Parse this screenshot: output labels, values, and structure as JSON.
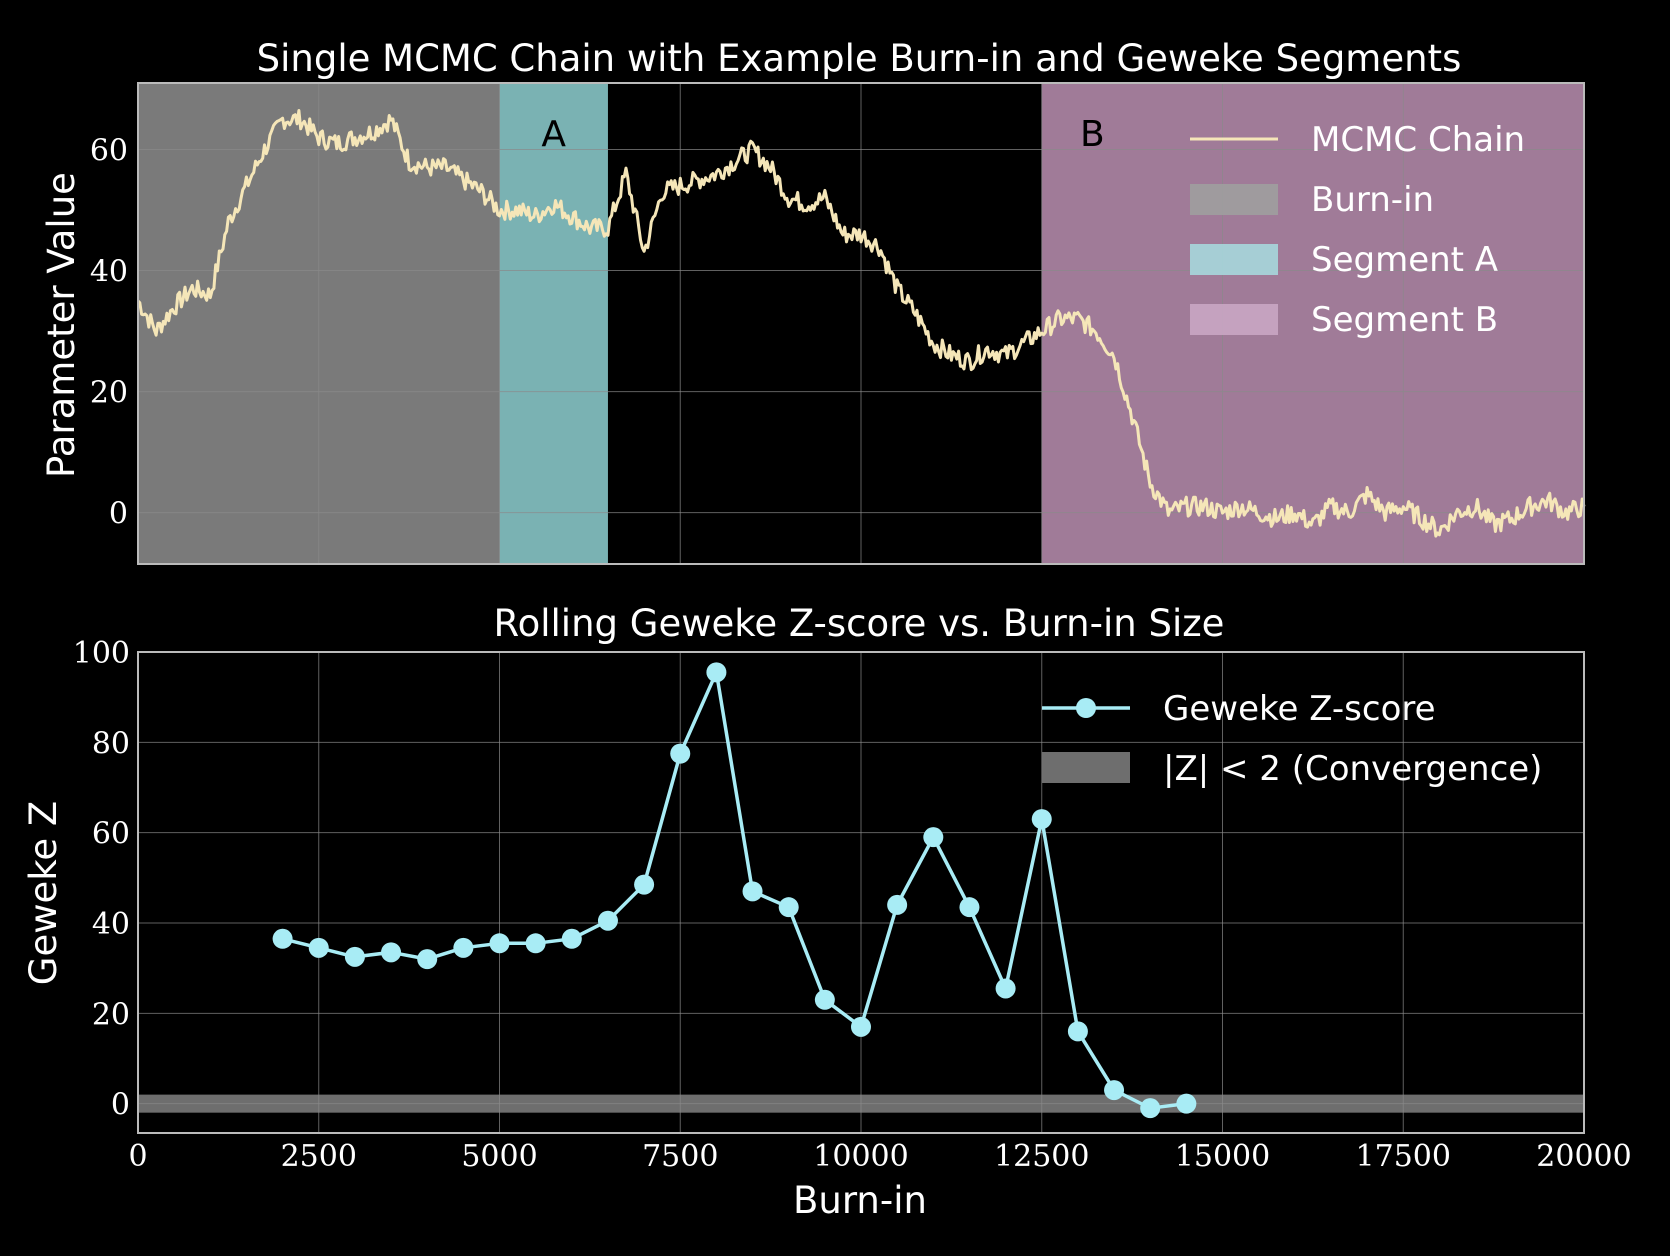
{
  "chart_data": [
    {
      "type": "line",
      "title": "Single MCMC Chain with Example Burn-in and Geweke Segments",
      "xlabel": "",
      "ylabel": "Parameter Value",
      "xlim": [
        0,
        20000
      ],
      "ylim": [
        -8.5,
        71
      ],
      "yticks": [
        "0",
        "20",
        "40",
        "60"
      ],
      "grid": true,
      "legend_position": "top-right",
      "regions": [
        {
          "name": "Burn-in",
          "x0": 0,
          "x1": 5000,
          "color": "#7a7a7a",
          "label": ""
        },
        {
          "name": "Segment A",
          "x0": 5000,
          "x1": 6500,
          "color": "#7ab2b3",
          "label": "A"
        },
        {
          "name": "Segment B",
          "x0": 12500,
          "x1": 20000,
          "color": "#a07b98",
          "label": "B"
        }
      ],
      "series": [
        {
          "name": "MCMC Chain",
          "color": "#f5e6b8",
          "x": [
            0,
            250,
            500,
            750,
            1000,
            1250,
            1500,
            1750,
            2000,
            2250,
            2500,
            2750,
            3000,
            3250,
            3500,
            3750,
            4000,
            4250,
            4500,
            4750,
            5000,
            5250,
            5500,
            5750,
            6000,
            6250,
            6500,
            6750,
            7000,
            7250,
            7500,
            7750,
            8000,
            8250,
            8500,
            8750,
            9000,
            9250,
            9500,
            9750,
            10000,
            10250,
            10500,
            10750,
            11000,
            11250,
            11500,
            11750,
            12000,
            12250,
            12500,
            12750,
            13000,
            13250,
            13500,
            13750,
            14000,
            14250,
            14500,
            14750,
            15000,
            15250,
            15500,
            15750,
            16000,
            16250,
            16500,
            16750,
            17000,
            17250,
            17500,
            17750,
            18000,
            18250,
            18500,
            18750,
            19000,
            19250,
            19500,
            19750,
            20000
          ],
          "y": [
            35,
            30,
            34,
            37,
            36,
            48,
            54,
            60,
            65,
            65,
            62,
            61,
            62,
            63,
            65,
            58,
            57,
            57,
            55,
            53,
            50,
            50,
            49,
            51,
            49,
            47,
            47,
            56,
            43,
            53,
            54,
            55,
            56,
            58,
            60,
            57,
            52,
            51,
            52,
            46,
            46,
            44,
            37,
            33,
            28,
            26,
            25,
            27,
            26,
            28,
            30,
            32,
            32,
            30,
            26,
            16,
            5,
            0,
            1,
            1,
            0,
            1,
            0,
            -1,
            0,
            -2,
            1,
            0,
            3,
            0,
            1,
            -1,
            -3,
            0,
            1,
            -2,
            -1,
            1,
            2,
            0,
            1
          ]
        }
      ]
    },
    {
      "type": "line",
      "title": "Rolling Geweke Z-score vs. Burn-in Size",
      "xlabel": "Burn-in",
      "ylabel": "Geweke Z",
      "xlim": [
        0,
        20000
      ],
      "ylim": [
        -6.5,
        100
      ],
      "xticks": [
        "0",
        "2500",
        "5000",
        "7500",
        "10000",
        "12500",
        "15000",
        "17500",
        "20000"
      ],
      "yticks": [
        "0",
        "20",
        "40",
        "60",
        "80",
        "100"
      ],
      "grid": true,
      "legend_position": "top-right",
      "band": {
        "name": "|Z| < 2 (Convergence)",
        "y0": -2,
        "y1": 2,
        "color": "#7a7a7a"
      },
      "series": [
        {
          "name": "Geweke Z-score",
          "color": "#a8ecf5",
          "x": [
            2000,
            2500,
            3000,
            3500,
            4000,
            4500,
            5000,
            5500,
            6000,
            6500,
            7000,
            7500,
            8000,
            8500,
            9000,
            9500,
            10000,
            10500,
            11000,
            11500,
            12000,
            12500,
            13000,
            13500,
            14000,
            14500
          ],
          "y": [
            36.5,
            34.5,
            32.5,
            33.5,
            32,
            34.5,
            35.5,
            35.5,
            36.5,
            40.5,
            48.5,
            77.5,
            95.5,
            47,
            43.5,
            23,
            17,
            44,
            59,
            43.5,
            25.5,
            63,
            16,
            3,
            -1,
            0
          ]
        }
      ]
    }
  ]
}
